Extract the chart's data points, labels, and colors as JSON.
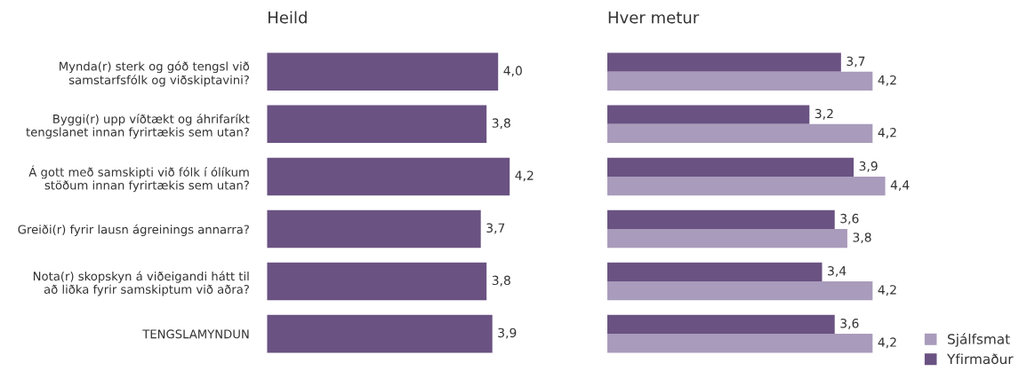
{
  "chart_data": [
    {
      "type": "bar",
      "orientation": "horizontal",
      "title": "Heild",
      "categories": [
        "Mynda(r) sterk og góð tengsl við\nsamstarfsfólk og viðskiptavini?",
        "Byggi(r) upp víðtækt og áhrifaríkt\ntengslanet innan fyrirtækis sem utan?",
        "Á gott með samskipti við fólk í ólíkum\nstöðum innan fyrirtækis sem utan?",
        "Greiði(r) fyrir lausn ágreinings annarra?",
        "Nota(r) skopskyn á viðeigandi hátt til\nað liðka fyrir samskiptum við aðra?",
        "TENGSLAMYNDUN"
      ],
      "series": [
        {
          "color": "#6a5282",
          "values": [
            4.0,
            3.8,
            4.2,
            3.7,
            3.8,
            3.9
          ],
          "value_labels": [
            "4,0",
            "3,8",
            "4,2",
            "3,7",
            "3,8",
            "3,9"
          ]
        }
      ],
      "tick_labels": "y",
      "grid": false,
      "legend": false
    },
    {
      "type": "bar",
      "orientation": "horizontal",
      "title": "Hver metur",
      "categories": [
        null,
        null,
        null,
        null,
        null,
        null
      ],
      "series": [
        {
          "name": "Yfirmaður",
          "color": "#6a5282",
          "values": [
            3.7,
            3.2,
            3.9,
            3.6,
            3.4,
            3.6
          ],
          "value_labels": [
            "3,7",
            "3,2",
            "3,9",
            "3,6",
            "3,4",
            "3,6"
          ]
        },
        {
          "name": "Sjálfsmat",
          "color": "#a99bbb",
          "values": [
            4.2,
            4.2,
            4.4,
            3.8,
            4.2,
            4.2
          ],
          "value_labels": [
            "4,2",
            "4,2",
            "4,4",
            "3,8",
            "4,2",
            "4,2"
          ]
        }
      ],
      "tick_labels": false,
      "grid": false,
      "legend": "bottom right"
    }
  ]
}
